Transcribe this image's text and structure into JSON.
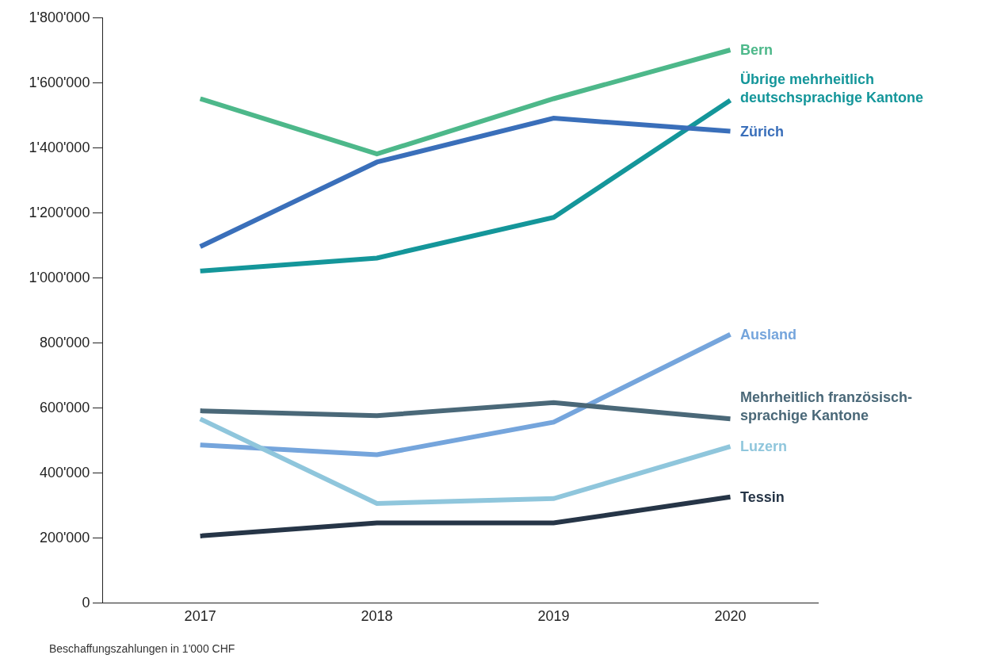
{
  "chart_data": {
    "type": "line",
    "categories": [
      "2017",
      "2018",
      "2019",
      "2020"
    ],
    "series": [
      {
        "name": "Bern",
        "color": "#4db88a",
        "values": [
          1550000,
          1380000,
          1550000,
          1700000
        ]
      },
      {
        "name": "Übrige mehrheitlich\ndeutschsprachige Kantone",
        "color": "#14969a",
        "values": [
          1020000,
          1060000,
          1185000,
          1545000
        ]
      },
      {
        "name": "Zürich",
        "color": "#3a6fba",
        "values": [
          1095000,
          1355000,
          1490000,
          1450000
        ]
      },
      {
        "name": "Ausland",
        "color": "#75a5dc",
        "values": [
          485000,
          455000,
          555000,
          825000
        ]
      },
      {
        "name": "Mehrheitlich französisch-\nsprachige Kantone",
        "color": "#4a6878",
        "values": [
          590000,
          575000,
          615000,
          565000
        ]
      },
      {
        "name": "Luzern",
        "color": "#8fc6dc",
        "values": [
          565000,
          305000,
          320000,
          480000
        ]
      },
      {
        "name": "Tessin",
        "color": "#263547",
        "values": [
          205000,
          245000,
          245000,
          325000
        ]
      }
    ],
    "ylim": [
      0,
      1800000
    ],
    "yticks": [
      {
        "value": 0,
        "label": "0"
      },
      {
        "value": 200000,
        "label": "200'000"
      },
      {
        "value": 400000,
        "label": "400'000"
      },
      {
        "value": 600000,
        "label": "600'000"
      },
      {
        "value": 800000,
        "label": "800'000"
      },
      {
        "value": 1000000,
        "label": "1'000'000"
      },
      {
        "value": 1200000,
        "label": "1'200'000"
      },
      {
        "value": 1400000,
        "label": "1'400'000"
      },
      {
        "value": 1600000,
        "label": "1'600'000"
      },
      {
        "value": 1800000,
        "label": "1'800'000"
      }
    ],
    "annotations": [
      "Beschaffungszahlungen in 1'000 CHF"
    ],
    "legend": false,
    "marker": "none",
    "line_style": "solid"
  }
}
